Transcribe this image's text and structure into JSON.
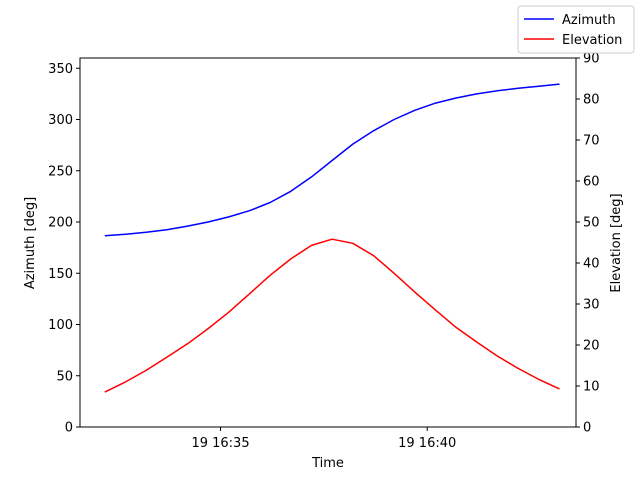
{
  "chart_data": {
    "type": "line",
    "title": "",
    "xlabel": "Time",
    "ylabel_left": "Azimuth [deg]",
    "ylabel_right": "Elevation [deg]",
    "x_tick_labels": [
      "19 16:35",
      "19 16:40"
    ],
    "x_tick_values_min": [
      35,
      40
    ],
    "xlim_min": [
      31.6,
      43.6
    ],
    "ylim_left": [
      0,
      360
    ],
    "yticks_left": [
      "0",
      "50",
      "100",
      "150",
      "200",
      "250",
      "300",
      "350"
    ],
    "ylim_right": [
      0,
      90
    ],
    "yticks_right": [
      "0",
      "10",
      "20",
      "30",
      "40",
      "50",
      "60",
      "70",
      "80",
      "90"
    ],
    "grid": false,
    "legend_position": "top-right",
    "x_minutes_after_16h": [
      32.2,
      32.7,
      33.2,
      33.7,
      34.2,
      34.7,
      35.2,
      35.7,
      36.2,
      36.7,
      37.2,
      37.7,
      38.2,
      38.7,
      39.2,
      39.7,
      40.2,
      40.7,
      41.2,
      41.7,
      42.2,
      42.7,
      43.2
    ],
    "series": [
      {
        "name": "Azimuth",
        "axis": "left",
        "color": "#0000ff",
        "values": [
          186.5,
          188.0,
          190.0,
          192.5,
          196.0,
          200.0,
          205.0,
          211.0,
          219.0,
          230.0,
          244.0,
          260.0,
          276.0,
          289.0,
          300.0,
          309.0,
          316.0,
          321.0,
          325.0,
          328.0,
          330.5,
          332.5,
          334.5
        ]
      },
      {
        "name": "Elevation",
        "axis": "right",
        "color": "#ff0000",
        "values": [
          8.5,
          11.0,
          13.8,
          17.0,
          20.3,
          24.0,
          28.0,
          32.5,
          37.0,
          41.0,
          44.3,
          45.8,
          44.8,
          41.8,
          37.5,
          32.9,
          28.5,
          24.3,
          20.7,
          17.3,
          14.3,
          11.6,
          9.3
        ]
      }
    ]
  }
}
